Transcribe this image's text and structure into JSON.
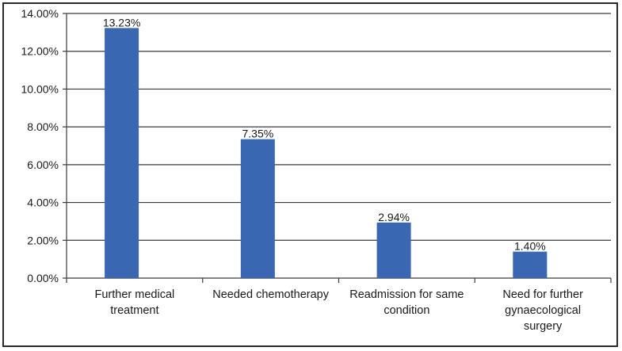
{
  "chart_data": {
    "type": "bar",
    "categories": [
      [
        "Further medical",
        "treatment"
      ],
      [
        "Needed chemotherapy"
      ],
      [
        "Readmission for same",
        "condition"
      ],
      [
        "Need for further",
        "gynaecological",
        "surgery"
      ]
    ],
    "values": [
      13.23,
      7.35,
      2.94,
      1.4
    ],
    "data_labels": [
      "13.23%",
      "7.35%",
      "2.94%",
      "1.40%"
    ],
    "y_ticks": [
      "0.00%",
      "2.00%",
      "4.00%",
      "6.00%",
      "8.00%",
      "10.00%",
      "12.00%",
      "14.00%"
    ],
    "ylim": [
      0,
      14
    ],
    "grid": true,
    "legend": "none",
    "bar_color": "#3a67b1",
    "title": "",
    "xlabel": "",
    "ylabel": ""
  }
}
